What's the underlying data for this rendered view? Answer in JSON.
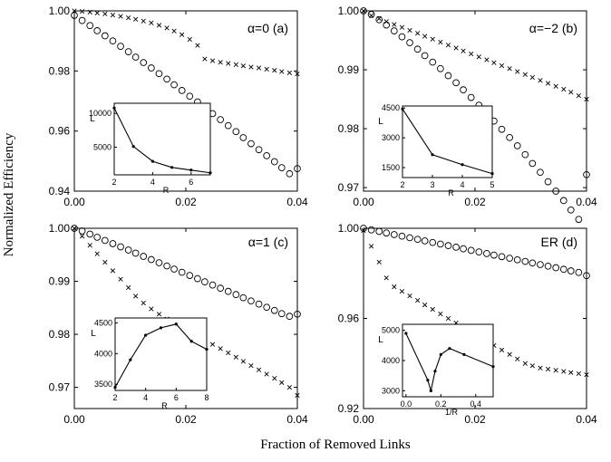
{
  "figure": {
    "ylabel": "Normalized Efficiency",
    "xlabel": "Fraction of Removed Links"
  },
  "chart_data": [
    {
      "type": "scatter",
      "panel": "a",
      "annotation": "α=0   (a)",
      "xlim": [
        0,
        0.04
      ],
      "ylim": [
        0.94,
        1.0
      ],
      "xticks": [
        0,
        0.02,
        0.04
      ],
      "xtick_labels": [
        "0.00",
        "0.02",
        "0.04"
      ],
      "yticks": [
        0.94,
        0.96,
        0.98,
        1.0
      ],
      "ytick_labels": [
        "0.94",
        "0.96",
        "0.98",
        "1.00"
      ],
      "grid": false,
      "series": [
        {
          "marker": "x",
          "x": [
            0,
            0.0014,
            0.0028,
            0.0041,
            0.0055,
            0.0069,
            0.0083,
            0.0097,
            0.011,
            0.0124,
            0.0138,
            0.0152,
            0.0166,
            0.0179,
            0.0193,
            0.0207,
            0.0221,
            0.0234,
            0.0248,
            0.0262,
            0.0276,
            0.029,
            0.0303,
            0.0317,
            0.0331,
            0.0345,
            0.0359,
            0.0372,
            0.0386,
            0.04
          ],
          "y": [
            1.0,
            0.9998,
            0.9996,
            0.9993,
            0.999,
            0.9986,
            0.9982,
            0.9977,
            0.9972,
            0.9966,
            0.996,
            0.9952,
            0.9943,
            0.9933,
            0.9921,
            0.9905,
            0.9885,
            0.984,
            0.9834,
            0.9829,
            0.9825,
            0.9821,
            0.9817,
            0.9813,
            0.981,
            0.9806,
            0.9802,
            0.9798,
            0.9794,
            0.979
          ]
        },
        {
          "marker": "o",
          "x": [
            0,
            0.0014,
            0.0028,
            0.0041,
            0.0055,
            0.0069,
            0.0083,
            0.0097,
            0.011,
            0.0124,
            0.0138,
            0.0152,
            0.0166,
            0.0179,
            0.0193,
            0.0207,
            0.0221,
            0.0234,
            0.0248,
            0.0262,
            0.0276,
            0.029,
            0.0303,
            0.0317,
            0.0331,
            0.0345,
            0.0359,
            0.0372,
            0.0386,
            0.04
          ],
          "y": [
            0.9985,
            0.9968,
            0.9951,
            0.9934,
            0.9917,
            0.99,
            0.9882,
            0.9864,
            0.9846,
            0.9828,
            0.981,
            0.9791,
            0.9773,
            0.9754,
            0.9735,
            0.9716,
            0.9697,
            0.9677,
            0.9658,
            0.9638,
            0.9618,
            0.9598,
            0.9578,
            0.9558,
            0.9538,
            0.9518,
            0.9498,
            0.9478,
            0.9458,
            0.9475
          ]
        }
      ],
      "inset": {
        "type": "line",
        "xlabel": "R",
        "ylabel": "L",
        "xlim": [
          2,
          7
        ],
        "ylim": [
          900,
          11500
        ],
        "xticks": [
          2,
          4,
          6
        ],
        "yticks": [
          5000,
          10000
        ],
        "x": [
          2,
          3,
          4,
          5,
          6,
          7
        ],
        "y": [
          10800,
          5100,
          2900,
          2000,
          1600,
          1200
        ]
      }
    },
    {
      "type": "scatter",
      "panel": "b",
      "annotation": "α=−2   (b)",
      "xlim": [
        0,
        0.04
      ],
      "ylim": [
        0.9694,
        1.0
      ],
      "xticks": [
        0,
        0.02,
        0.04
      ],
      "xtick_labels": [
        "0.00",
        "0.02",
        "0.04"
      ],
      "yticks": [
        0.97,
        0.98,
        0.99,
        1.0
      ],
      "ytick_labels": [
        "0.97",
        "0.98",
        "0.99",
        "1.00"
      ],
      "grid": false,
      "series": [
        {
          "marker": "x",
          "x": [
            0,
            0.0014,
            0.0028,
            0.0041,
            0.0055,
            0.0069,
            0.0083,
            0.0097,
            0.011,
            0.0124,
            0.0138,
            0.0152,
            0.0166,
            0.0179,
            0.0193,
            0.0207,
            0.0221,
            0.0234,
            0.0248,
            0.0262,
            0.0276,
            0.029,
            0.0303,
            0.0317,
            0.0331,
            0.0345,
            0.0359,
            0.0372,
            0.0386,
            0.04
          ],
          "y": [
            1.0,
            0.9992,
            0.9987,
            0.9982,
            0.9977,
            0.9972,
            0.9967,
            0.9962,
            0.9957,
            0.9952,
            0.9947,
            0.9942,
            0.9937,
            0.9932,
            0.9927,
            0.9922,
            0.9917,
            0.9912,
            0.9907,
            0.9902,
            0.9897,
            0.9892,
            0.9887,
            0.9882,
            0.9877,
            0.9872,
            0.9867,
            0.9862,
            0.9856,
            0.985
          ]
        },
        {
          "marker": "o",
          "x": [
            0,
            0.0014,
            0.0028,
            0.0041,
            0.0055,
            0.0069,
            0.0083,
            0.0097,
            0.011,
            0.0124,
            0.0138,
            0.0152,
            0.0166,
            0.0179,
            0.0193,
            0.0207,
            0.0221,
            0.0234,
            0.0248,
            0.0262,
            0.0276,
            0.029,
            0.0303,
            0.0317,
            0.0331,
            0.0345,
            0.0359,
            0.0372,
            0.0386,
            0.04
          ],
          "y": [
            1.0,
            0.9994,
            0.9985,
            0.9976,
            0.9966,
            0.9956,
            0.9946,
            0.9935,
            0.9924,
            0.9913,
            0.9902,
            0.989,
            0.9878,
            0.9866,
            0.9853,
            0.984,
            0.9827,
            0.9813,
            0.9799,
            0.9785,
            0.9771,
            0.9756,
            0.9741,
            0.9726,
            0.971,
            0.9694,
            0.9678,
            0.9662,
            0.9646,
            0.9722
          ]
        }
      ],
      "inset": {
        "type": "line",
        "xlabel": "R",
        "ylabel": "L",
        "xlim": [
          2,
          5
        ],
        "ylim": [
          1000,
          4600
        ],
        "xticks": [
          2,
          3,
          4,
          5
        ],
        "yticks": [
          1500,
          3000,
          4500
        ],
        "x": [
          2,
          3,
          4,
          5
        ],
        "y": [
          4450,
          2150,
          1650,
          1200
        ]
      }
    },
    {
      "type": "scatter",
      "panel": "c",
      "annotation": "α=1   (c)",
      "xlim": [
        0,
        0.04
      ],
      "ylim": [
        0.966,
        1.0
      ],
      "xticks": [
        0,
        0.02,
        0.04
      ],
      "xtick_labels": [
        "0.00",
        "0.02",
        "0.04"
      ],
      "yticks": [
        0.97,
        0.98,
        0.99,
        1.0
      ],
      "ytick_labels": [
        "0.97",
        "0.98",
        "0.99",
        "1.00"
      ],
      "grid": false,
      "series": [
        {
          "marker": "x",
          "x": [
            0,
            0.0014,
            0.0028,
            0.0041,
            0.0055,
            0.0069,
            0.0083,
            0.0097,
            0.011,
            0.0124,
            0.0138,
            0.0152,
            0.0166,
            0.0179,
            0.0193,
            0.0207,
            0.0221,
            0.0234,
            0.0248,
            0.0262,
            0.0276,
            0.029,
            0.0303,
            0.0317,
            0.0331,
            0.0345,
            0.0359,
            0.0372,
            0.0386,
            0.04
          ],
          "y": [
            1.0,
            0.9985,
            0.9968,
            0.9952,
            0.9936,
            0.992,
            0.9904,
            0.9888,
            0.9872,
            0.9859,
            0.9848,
            0.9838,
            0.9829,
            0.9821,
            0.9813,
            0.9805,
            0.9797,
            0.9789,
            0.9781,
            0.9773,
            0.9765,
            0.9757,
            0.9749,
            0.9741,
            0.9733,
            0.9725,
            0.9717,
            0.9709,
            0.97,
            0.9685
          ]
        },
        {
          "marker": "o",
          "x": [
            0,
            0.0014,
            0.0028,
            0.0041,
            0.0055,
            0.0069,
            0.0083,
            0.0097,
            0.011,
            0.0124,
            0.0138,
            0.0152,
            0.0166,
            0.0179,
            0.0193,
            0.0207,
            0.0221,
            0.0234,
            0.0248,
            0.0262,
            0.0276,
            0.029,
            0.0303,
            0.0317,
            0.0331,
            0.0345,
            0.0359,
            0.0372,
            0.0386,
            0.04
          ],
          "y": [
            1.0,
            0.9995,
            0.9989,
            0.9983,
            0.9977,
            0.9971,
            0.9965,
            0.9959,
            0.9953,
            0.9947,
            0.9941,
            0.9935,
            0.9929,
            0.9923,
            0.9917,
            0.9911,
            0.9905,
            0.9899,
            0.9893,
            0.9887,
            0.9881,
            0.9875,
            0.9869,
            0.9863,
            0.9857,
            0.9851,
            0.9845,
            0.9839,
            0.9834,
            0.9838
          ]
        }
      ],
      "inset": {
        "type": "line",
        "xlabel": "R",
        "ylabel": "L",
        "xlim": [
          2,
          8
        ],
        "ylim": [
          3400,
          4580
        ],
        "xticks": [
          2,
          4,
          6,
          8
        ],
        "yticks": [
          3500,
          4000,
          4500
        ],
        "x": [
          2,
          3,
          4,
          5,
          6,
          7,
          8
        ],
        "y": [
          3450,
          3900,
          4300,
          4420,
          4480,
          4200,
          4070
        ]
      }
    },
    {
      "type": "scatter",
      "panel": "d",
      "annotation": "ER   (d)",
      "xlim": [
        0,
        0.04
      ],
      "ylim": [
        0.92,
        1.0
      ],
      "xticks": [
        0,
        0.02,
        0.04
      ],
      "xtick_labels": [
        "0.00",
        "0.02",
        "0.04"
      ],
      "yticks": [
        0.92,
        0.96,
        1.0
      ],
      "ytick_labels": [
        "0.92",
        "0.96",
        "1.00"
      ],
      "grid": false,
      "series": [
        {
          "marker": "x",
          "x": [
            0,
            0.0014,
            0.0028,
            0.0041,
            0.0055,
            0.0069,
            0.0083,
            0.0097,
            0.011,
            0.0124,
            0.0138,
            0.0152,
            0.0166,
            0.0179,
            0.0193,
            0.0207,
            0.0221,
            0.0234,
            0.0248,
            0.0262,
            0.0276,
            0.029,
            0.0303,
            0.0317,
            0.0331,
            0.0345,
            0.0359,
            0.0372,
            0.0386,
            0.04
          ],
          "y": [
            0.999,
            0.992,
            0.985,
            0.978,
            0.974,
            0.972,
            0.97,
            0.968,
            0.966,
            0.964,
            0.962,
            0.96,
            0.958,
            0.956,
            0.954,
            0.952,
            0.95,
            0.948,
            0.946,
            0.944,
            0.942,
            0.94,
            0.939,
            0.938,
            0.9375,
            0.937,
            0.9365,
            0.936,
            0.9355,
            0.935
          ]
        },
        {
          "marker": "o",
          "x": [
            0,
            0.0014,
            0.0028,
            0.0041,
            0.0055,
            0.0069,
            0.0083,
            0.0097,
            0.011,
            0.0124,
            0.0138,
            0.0152,
            0.0166,
            0.0179,
            0.0193,
            0.0207,
            0.0221,
            0.0234,
            0.0248,
            0.0262,
            0.0276,
            0.029,
            0.0303,
            0.0317,
            0.0331,
            0.0345,
            0.0359,
            0.0372,
            0.0386,
            0.04
          ],
          "y": [
            1.0,
            0.9993,
            0.9986,
            0.9979,
            0.9972,
            0.9965,
            0.9958,
            0.9951,
            0.9944,
            0.9937,
            0.993,
            0.9923,
            0.9916,
            0.9909,
            0.9902,
            0.9895,
            0.9888,
            0.9881,
            0.9874,
            0.9867,
            0.986,
            0.9853,
            0.9846,
            0.9839,
            0.9832,
            0.9825,
            0.9818,
            0.9811,
            0.9804,
            0.979
          ]
        }
      ],
      "inset": {
        "type": "line",
        "xlabel": "1/R",
        "ylabel": "L",
        "xlim": [
          -0.02,
          0.5
        ],
        "ylim": [
          2800,
          5200
        ],
        "xticks": [
          0.0,
          0.2,
          0.4
        ],
        "xtick_labels": [
          "0.0",
          "0.2",
          "0.4"
        ],
        "yticks": [
          3000,
          4000,
          5000
        ],
        "x": [
          0.0,
          0.125,
          0.143,
          0.167,
          0.2,
          0.25,
          0.333,
          0.5
        ],
        "y": [
          4900,
          3350,
          3000,
          3650,
          4200,
          4400,
          4200,
          3800
        ]
      }
    }
  ]
}
